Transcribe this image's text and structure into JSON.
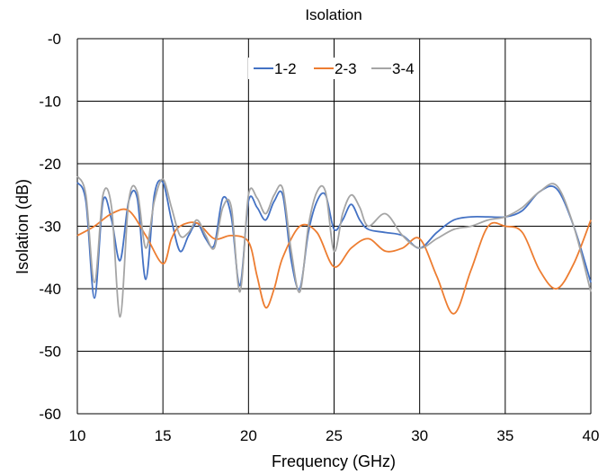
{
  "chart_data": {
    "type": "line",
    "title": "Isolation",
    "xlabel": "Frequency (GHz)",
    "ylabel": "Isolation (dB)",
    "xlim": [
      10,
      40
    ],
    "ylim": [
      -60,
      0
    ],
    "x_ticks": [
      10,
      15,
      20,
      25,
      30,
      35,
      40
    ],
    "y_ticks": [
      0,
      -10,
      -20,
      -30,
      -40,
      -50,
      -60
    ],
    "y_tick_labels": [
      "-0",
      "-10",
      "-20",
      "-30",
      "-40",
      "-50",
      "-60"
    ],
    "grid": true,
    "legend_position": "top-center",
    "series": [
      {
        "name": "1-2",
        "color": "#4472C4",
        "points": [
          [
            10,
            -23
          ],
          [
            10.5,
            -26
          ],
          [
            11,
            -41.5
          ],
          [
            11.5,
            -26
          ],
          [
            12,
            -29
          ],
          [
            12.5,
            -35.5
          ],
          [
            13,
            -26
          ],
          [
            13.5,
            -25.5
          ],
          [
            14,
            -38.5
          ],
          [
            14.5,
            -25
          ],
          [
            15,
            -23
          ],
          [
            15.5,
            -29
          ],
          [
            16,
            -34
          ],
          [
            16.5,
            -31.5
          ],
          [
            17,
            -29.5
          ],
          [
            17.5,
            -32
          ],
          [
            18,
            -33
          ],
          [
            18.5,
            -25.5
          ],
          [
            19,
            -28.5
          ],
          [
            19.5,
            -39.5
          ],
          [
            20,
            -26
          ],
          [
            20.5,
            -27
          ],
          [
            21,
            -29
          ],
          [
            21.5,
            -26
          ],
          [
            22,
            -25
          ],
          [
            22.5,
            -35.5
          ],
          [
            23,
            -40
          ],
          [
            23.5,
            -31
          ],
          [
            24,
            -26
          ],
          [
            24.5,
            -25
          ],
          [
            25,
            -30.5
          ],
          [
            25.5,
            -29
          ],
          [
            26,
            -26.5
          ],
          [
            26.5,
            -29
          ],
          [
            27,
            -30.5
          ],
          [
            28,
            -31
          ],
          [
            29,
            -31.5
          ],
          [
            30,
            -33.5
          ],
          [
            31,
            -31
          ],
          [
            32,
            -29
          ],
          [
            33,
            -28.5
          ],
          [
            34,
            -28.5
          ],
          [
            35,
            -28.5
          ],
          [
            36,
            -27.5
          ],
          [
            37,
            -24.5
          ],
          [
            38,
            -24
          ],
          [
            39,
            -30
          ],
          [
            40,
            -39
          ]
        ]
      },
      {
        "name": "2-3",
        "color": "#ED7D31",
        "points": [
          [
            10,
            -31.5
          ],
          [
            11,
            -30
          ],
          [
            12,
            -28
          ],
          [
            13,
            -27.5
          ],
          [
            14,
            -31.5
          ],
          [
            15,
            -36
          ],
          [
            15.5,
            -32
          ],
          [
            16,
            -30
          ],
          [
            17,
            -29.5
          ],
          [
            18,
            -32
          ],
          [
            19,
            -31.5
          ],
          [
            20,
            -32.5
          ],
          [
            20.5,
            -38
          ],
          [
            21,
            -43
          ],
          [
            21.5,
            -40
          ],
          [
            22,
            -35
          ],
          [
            23,
            -30
          ],
          [
            24,
            -31
          ],
          [
            25,
            -36.5
          ],
          [
            26,
            -33.5
          ],
          [
            27,
            -32
          ],
          [
            28,
            -34
          ],
          [
            29,
            -33.5
          ],
          [
            30,
            -32
          ],
          [
            31,
            -38
          ],
          [
            32,
            -44
          ],
          [
            33,
            -37
          ],
          [
            34,
            -30
          ],
          [
            35,
            -30
          ],
          [
            36,
            -31
          ],
          [
            37,
            -37
          ],
          [
            38,
            -40
          ],
          [
            39,
            -36
          ],
          [
            40,
            -29
          ]
        ]
      },
      {
        "name": "3-4",
        "color": "#A5A5A5",
        "points": [
          [
            10,
            -22
          ],
          [
            10.5,
            -25
          ],
          [
            11,
            -39
          ],
          [
            11.5,
            -25
          ],
          [
            12,
            -27
          ],
          [
            12.5,
            -44.5
          ],
          [
            13,
            -26
          ],
          [
            13.5,
            -24.5
          ],
          [
            14,
            -33.5
          ],
          [
            14.5,
            -26
          ],
          [
            15,
            -22.5
          ],
          [
            15.5,
            -27
          ],
          [
            16,
            -31.5
          ],
          [
            16.5,
            -31
          ],
          [
            17,
            -29
          ],
          [
            17.5,
            -31.5
          ],
          [
            18,
            -33.5
          ],
          [
            18.5,
            -27
          ],
          [
            19,
            -27
          ],
          [
            19.5,
            -40.5
          ],
          [
            20,
            -25
          ],
          [
            20.5,
            -25.5
          ],
          [
            21,
            -28
          ],
          [
            21.5,
            -25
          ],
          [
            22,
            -24
          ],
          [
            22.5,
            -34
          ],
          [
            23,
            -40.5
          ],
          [
            23.5,
            -30
          ],
          [
            24,
            -24.5
          ],
          [
            24.5,
            -24.5
          ],
          [
            25,
            -34
          ],
          [
            25.5,
            -28
          ],
          [
            26,
            -25
          ],
          [
            26.5,
            -27
          ],
          [
            27,
            -30
          ],
          [
            28,
            -28
          ],
          [
            29,
            -31.5
          ],
          [
            30,
            -33.5
          ],
          [
            31,
            -32
          ],
          [
            32,
            -30.5
          ],
          [
            33,
            -30
          ],
          [
            34,
            -29
          ],
          [
            35,
            -28.5
          ],
          [
            36,
            -27
          ],
          [
            37,
            -24.5
          ],
          [
            38,
            -23.5
          ],
          [
            39,
            -30
          ],
          [
            40,
            -40.5
          ]
        ]
      }
    ]
  }
}
